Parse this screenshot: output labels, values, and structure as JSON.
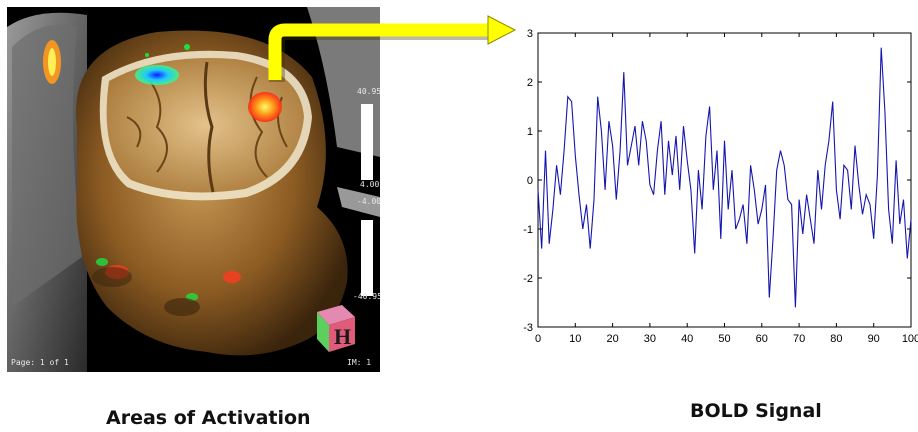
{
  "left_panel": {
    "caption": "Areas of Activation",
    "page_label": "Page: 1 of 1",
    "im_label": "IM: 1",
    "scale_pos_max": "40.95",
    "scale_pos_min": "4.00",
    "scale_neg_max": "-4.00",
    "scale_neg_min": "-40.95",
    "orientation_cube_letter": "H",
    "colors": {
      "activation_hot": "#ff3b1f",
      "activation_cold": "#28c8ff",
      "scalp": "#8a5a22",
      "arrow": "#ffff00"
    }
  },
  "right_panel": {
    "caption": "BOLD Signal"
  },
  "chart_data": {
    "type": "line",
    "xlim": [
      0,
      100
    ],
    "ylim": [
      -3,
      3
    ],
    "xticks": [
      0,
      10,
      20,
      30,
      40,
      50,
      60,
      70,
      80,
      90,
      100
    ],
    "yticks": [
      -3,
      -2,
      -1,
      0,
      1,
      2,
      3
    ],
    "line_color": "#1515b0",
    "series": [
      {
        "x": [
          0,
          1,
          2,
          3,
          4,
          5,
          6,
          7,
          8,
          9,
          10,
          11,
          12,
          13,
          14,
          15,
          16,
          17,
          18,
          19,
          20,
          21,
          22,
          23,
          24,
          25,
          26,
          27,
          28,
          29,
          30,
          31,
          32,
          33,
          34,
          35,
          36,
          37,
          38,
          39,
          40,
          41,
          42,
          43,
          44,
          45,
          46,
          47,
          48,
          49,
          50,
          51,
          52,
          53,
          54,
          55,
          56,
          57,
          58,
          59,
          60,
          61,
          62,
          63,
          64,
          65,
          66,
          67,
          68,
          69,
          70,
          71,
          72,
          73,
          74,
          75,
          76,
          77,
          78,
          79,
          80,
          81,
          82,
          83,
          84,
          85,
          86,
          87,
          88,
          89,
          90,
          91,
          92,
          93,
          94,
          95,
          96,
          97,
          98,
          99,
          100
        ],
        "values": [
          -0.2,
          -1.4,
          0.6,
          -1.3,
          -0.6,
          0.3,
          -0.3,
          0.6,
          1.7,
          1.6,
          0.5,
          -0.3,
          -1.0,
          -0.5,
          -1.4,
          -0.4,
          1.7,
          1.0,
          -0.2,
          1.2,
          0.7,
          -0.4,
          0.6,
          2.2,
          0.3,
          0.7,
          1.1,
          0.3,
          1.2,
          0.8,
          -0.1,
          -0.3,
          0.6,
          1.2,
          -0.3,
          0.8,
          0.1,
          0.9,
          -0.2,
          1.1,
          0.4,
          -0.2,
          -1.5,
          0.2,
          -0.6,
          0.9,
          1.5,
          -0.2,
          0.6,
          -1.2,
          0.8,
          -0.6,
          0.2,
          -1.0,
          -0.8,
          -0.5,
          -1.3,
          0.3,
          -0.2,
          -0.9,
          -0.6,
          -0.1,
          -2.4,
          -1.2,
          0.2,
          0.6,
          0.3,
          -0.4,
          -0.5,
          -2.6,
          -0.4,
          -1.1,
          -0.3,
          -0.8,
          -1.3,
          0.2,
          -0.6,
          0.3,
          0.8,
          1.6,
          -0.2,
          -0.8,
          0.3,
          0.2,
          -0.6,
          0.7,
          -0.1,
          -0.7,
          -0.3,
          -0.5,
          -1.2,
          0.1,
          2.7,
          1.4,
          -0.6,
          -1.3,
          0.4,
          -0.9,
          -0.4,
          -1.6,
          -0.8
        ]
      }
    ]
  }
}
